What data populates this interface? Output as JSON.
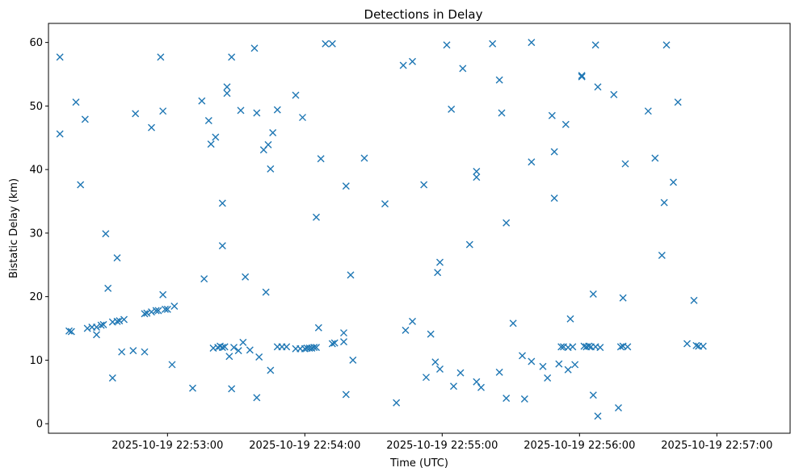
{
  "chart_data": {
    "type": "scatter",
    "title": "Detections in Delay",
    "xlabel": "Time (UTC)",
    "ylabel": "Bistatic Delay (km)",
    "xlim": [
      "2025-10-19T22:52:08",
      "2025-10-19T22:57:32"
    ],
    "ylim": [
      -1.5,
      63
    ],
    "x_ticks": [
      "2025-10-19 22:53:00",
      "2025-10-19 22:54:00",
      "2025-10-19 22:55:00",
      "2025-10-19 22:56:00",
      "2025-10-19 22:57:00"
    ],
    "y_ticks": [
      0,
      10,
      20,
      30,
      40,
      50,
      60
    ],
    "grid": false,
    "legend": null,
    "marker": "x",
    "color": "#1f77b4",
    "points": [
      [
        "22:52:13",
        57.7
      ],
      [
        "22:52:13",
        45.6
      ],
      [
        "22:52:17",
        14.6
      ],
      [
        "22:52:18",
        14.5
      ],
      [
        "22:52:20",
        50.6
      ],
      [
        "22:52:22",
        37.6
      ],
      [
        "22:52:24",
        47.9
      ],
      [
        "22:52:25",
        15.0
      ],
      [
        "22:52:27",
        15.2
      ],
      [
        "22:52:29",
        15.2
      ],
      [
        "22:52:29",
        14.0
      ],
      [
        "22:52:31",
        15.5
      ],
      [
        "22:52:32",
        15.6
      ],
      [
        "22:52:33",
        29.9
      ],
      [
        "22:52:34",
        21.3
      ],
      [
        "22:52:36",
        16.0
      ],
      [
        "22:52:36",
        7.2
      ],
      [
        "22:52:38",
        26.1
      ],
      [
        "22:52:38",
        16.1
      ],
      [
        "22:52:39",
        16.2
      ],
      [
        "22:52:40",
        11.3
      ],
      [
        "22:52:41",
        16.4
      ],
      [
        "22:52:45",
        11.5
      ],
      [
        "22:52:46",
        48.8
      ],
      [
        "22:52:50",
        11.3
      ],
      [
        "22:52:50",
        17.3
      ],
      [
        "22:52:51",
        17.4
      ],
      [
        "22:52:53",
        17.6
      ],
      [
        "22:52:53",
        46.6
      ],
      [
        "22:52:55",
        17.8
      ],
      [
        "22:52:56",
        17.8
      ],
      [
        "22:52:57",
        57.7
      ],
      [
        "22:52:58",
        20.3
      ],
      [
        "22:52:58",
        49.2
      ],
      [
        "22:52:59",
        18.0
      ],
      [
        "22:53:00",
        18.0
      ],
      [
        "22:53:02",
        9.3
      ],
      [
        "22:53:03",
        18.5
      ],
      [
        "22:53:11",
        5.6
      ],
      [
        "22:53:15",
        50.8
      ],
      [
        "22:53:16",
        22.8
      ],
      [
        "22:53:18",
        47.7
      ],
      [
        "22:53:19",
        44.0
      ],
      [
        "22:53:20",
        11.9
      ],
      [
        "22:53:21",
        45.1
      ],
      [
        "22:53:22",
        12.0
      ],
      [
        "22:53:23",
        12.2
      ],
      [
        "22:53:24",
        34.7
      ],
      [
        "22:53:24",
        28.0
      ],
      [
        "22:53:24",
        12.0
      ],
      [
        "22:53:25",
        12.1
      ],
      [
        "22:53:26",
        53.0
      ],
      [
        "22:53:26",
        52.0
      ],
      [
        "22:53:27",
        10.6
      ],
      [
        "22:53:28",
        57.7
      ],
      [
        "22:53:28",
        5.5
      ],
      [
        "22:53:29",
        12.0
      ],
      [
        "22:53:31",
        11.5
      ],
      [
        "22:53:32",
        49.3
      ],
      [
        "22:53:33",
        12.8
      ],
      [
        "22:53:34",
        23.1
      ],
      [
        "22:53:36",
        11.6
      ],
      [
        "22:53:38",
        59.1
      ],
      [
        "22:53:39",
        48.9
      ],
      [
        "22:53:39",
        4.1
      ],
      [
        "22:53:40",
        10.5
      ],
      [
        "22:53:42",
        43.1
      ],
      [
        "22:53:43",
        20.7
      ],
      [
        "22:53:44",
        43.9
      ],
      [
        "22:53:45",
        40.1
      ],
      [
        "22:53:45",
        8.4
      ],
      [
        "22:53:46",
        45.8
      ],
      [
        "22:53:48",
        49.4
      ],
      [
        "22:53:48",
        12.1
      ],
      [
        "22:53:50",
        12.1
      ],
      [
        "22:53:52",
        12.1
      ],
      [
        "22:53:56",
        51.7
      ],
      [
        "22:53:56",
        11.8
      ],
      [
        "22:53:58",
        11.8
      ],
      [
        "22:53:59",
        48.2
      ],
      [
        "22:54:00",
        11.8
      ],
      [
        "22:54:01",
        11.9
      ],
      [
        "22:54:02",
        11.9
      ],
      [
        "22:54:03",
        11.9
      ],
      [
        "22:54:04",
        12.0
      ],
      [
        "22:54:05",
        32.5
      ],
      [
        "22:54:05",
        12.0
      ],
      [
        "22:54:06",
        15.1
      ],
      [
        "22:54:07",
        41.7
      ],
      [
        "22:54:09",
        59.8
      ],
      [
        "22:54:12",
        59.8
      ],
      [
        "22:54:12",
        12.6
      ],
      [
        "22:54:13",
        12.7
      ],
      [
        "22:54:17",
        12.9
      ],
      [
        "22:54:17",
        14.3
      ],
      [
        "22:54:18",
        37.4
      ],
      [
        "22:54:18",
        4.6
      ],
      [
        "22:54:20",
        23.4
      ],
      [
        "22:54:21",
        10.0
      ],
      [
        "22:54:26",
        41.8
      ],
      [
        "22:54:35",
        34.6
      ],
      [
        "22:54:40",
        3.3
      ],
      [
        "22:54:43",
        56.4
      ],
      [
        "22:54:44",
        14.7
      ],
      [
        "22:54:47",
        57.0
      ],
      [
        "22:54:47",
        16.1
      ],
      [
        "22:54:52",
        37.6
      ],
      [
        "22:54:53",
        7.3
      ],
      [
        "22:54:55",
        14.1
      ],
      [
        "22:54:57",
        9.7
      ],
      [
        "22:54:58",
        23.8
      ],
      [
        "22:54:59",
        25.4
      ],
      [
        "22:54:59",
        8.6
      ],
      [
        "22:55:02",
        59.6
      ],
      [
        "22:55:04",
        49.5
      ],
      [
        "22:55:05",
        5.9
      ],
      [
        "22:55:08",
        8.0
      ],
      [
        "22:55:09",
        55.9
      ],
      [
        "22:55:12",
        28.2
      ],
      [
        "22:55:15",
        39.7
      ],
      [
        "22:55:15",
        38.8
      ],
      [
        "22:55:15",
        6.6
      ],
      [
        "22:55:17",
        5.7
      ],
      [
        "22:55:22",
        59.8
      ],
      [
        "22:55:25",
        54.1
      ],
      [
        "22:55:25",
        8.1
      ],
      [
        "22:55:26",
        48.9
      ],
      [
        "22:55:28",
        31.6
      ],
      [
        "22:55:28",
        4.0
      ],
      [
        "22:55:31",
        15.8
      ],
      [
        "22:55:35",
        10.7
      ],
      [
        "22:55:36",
        3.9
      ],
      [
        "22:55:39",
        60.0
      ],
      [
        "22:55:39",
        41.2
      ],
      [
        "22:55:39",
        9.8
      ],
      [
        "22:55:44",
        9.0
      ],
      [
        "22:55:46",
        7.2
      ],
      [
        "22:55:48",
        48.5
      ],
      [
        "22:55:49",
        42.8
      ],
      [
        "22:55:49",
        35.5
      ],
      [
        "22:55:51",
        9.4
      ],
      [
        "22:55:52",
        12.1
      ],
      [
        "22:55:53",
        12.1
      ],
      [
        "22:55:54",
        47.1
      ],
      [
        "22:55:55",
        12.0
      ],
      [
        "22:55:55",
        8.5
      ],
      [
        "22:55:56",
        16.5
      ],
      [
        "22:55:57",
        12.1
      ],
      [
        "22:55:58",
        9.3
      ],
      [
        "22:56:01",
        54.6
      ],
      [
        "22:56:01",
        54.8
      ],
      [
        "22:56:02",
        12.2
      ],
      [
        "22:56:03",
        12.1
      ],
      [
        "22:56:04",
        12.2
      ],
      [
        "22:56:05",
        12.1
      ],
      [
        "22:56:06",
        20.4
      ],
      [
        "22:56:06",
        4.5
      ],
      [
        "22:56:07",
        59.6
      ],
      [
        "22:56:07",
        12.1
      ],
      [
        "22:56:08",
        53.0
      ],
      [
        "22:56:08",
        1.2
      ],
      [
        "22:56:09",
        12.0
      ],
      [
        "22:56:15",
        51.8
      ],
      [
        "22:56:17",
        2.5
      ],
      [
        "22:56:18",
        12.1
      ],
      [
        "22:56:19",
        12.2
      ],
      [
        "22:56:19",
        19.8
      ],
      [
        "22:56:20",
        40.9
      ],
      [
        "22:56:21",
        12.1
      ],
      [
        "22:56:30",
        49.2
      ],
      [
        "22:56:33",
        41.8
      ],
      [
        "22:56:36",
        26.5
      ],
      [
        "22:56:37",
        34.8
      ],
      [
        "22:56:38",
        59.6
      ],
      [
        "22:56:41",
        38.0
      ],
      [
        "22:56:43",
        50.6
      ],
      [
        "22:56:47",
        12.6
      ],
      [
        "22:56:50",
        19.4
      ],
      [
        "22:56:51",
        12.3
      ],
      [
        "22:56:52",
        12.2
      ],
      [
        "22:56:54",
        12.2
      ]
    ]
  }
}
